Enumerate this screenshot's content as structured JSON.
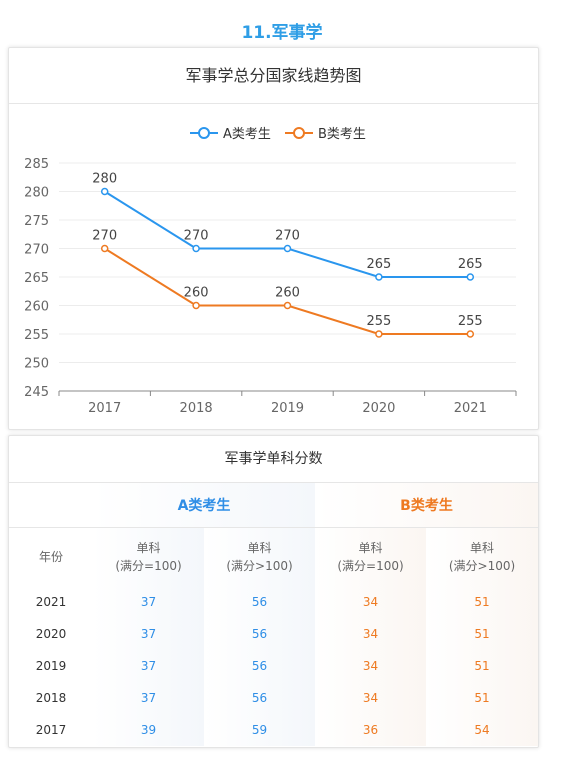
{
  "section_title": "11.军事学",
  "colors": {
    "series_a": "#2a96ee",
    "series_b": "#ee7a22"
  },
  "chart_data": {
    "type": "line",
    "title": "军事学总分国家线趋势图",
    "categories": [
      "2017",
      "2018",
      "2019",
      "2020",
      "2021"
    ],
    "series": [
      {
        "name": "A类考生",
        "values": [
          280,
          270,
          270,
          265,
          265
        ]
      },
      {
        "name": "B类考生",
        "values": [
          270,
          260,
          260,
          255,
          255
        ]
      }
    ],
    "ylim": [
      245,
      285
    ],
    "yticks": [
      245,
      250,
      255,
      260,
      265,
      270,
      275,
      280,
      285
    ],
    "grid": true,
    "legend_position": "top-center"
  },
  "table": {
    "title": "军事学单科分数",
    "group_a": "A类考生",
    "group_b": "B类考生",
    "year_header": "年份",
    "col_headers": [
      {
        "line1": "单科",
        "line2": "(满分=100)"
      },
      {
        "line1": "单科",
        "line2": "(满分>100)"
      },
      {
        "line1": "单科",
        "line2": "(满分=100)"
      },
      {
        "line1": "单科",
        "line2": "(满分>100)"
      }
    ],
    "rows": [
      {
        "year": "2021",
        "a1": "37",
        "a2": "56",
        "b1": "34",
        "b2": "51"
      },
      {
        "year": "2020",
        "a1": "37",
        "a2": "56",
        "b1": "34",
        "b2": "51"
      },
      {
        "year": "2019",
        "a1": "37",
        "a2": "56",
        "b1": "34",
        "b2": "51"
      },
      {
        "year": "2018",
        "a1": "37",
        "a2": "56",
        "b1": "34",
        "b2": "51"
      },
      {
        "year": "2017",
        "a1": "39",
        "a2": "59",
        "b1": "36",
        "b2": "54"
      }
    ]
  }
}
